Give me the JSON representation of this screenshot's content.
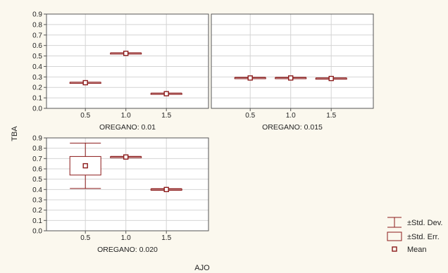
{
  "chart_data": {
    "type": "box",
    "ylabel": "TBA",
    "xlabel": "AJO",
    "categories": [
      "0.5",
      "1.0",
      "1.5"
    ],
    "y_ticks": [
      "0.0",
      "0.1",
      "0.2",
      "0.3",
      "0.4",
      "0.5",
      "0.6",
      "0.7",
      "0.8",
      "0.9"
    ],
    "ylim": [
      0,
      0.9
    ],
    "grid": true,
    "color": "#8b1a1a",
    "panels": [
      {
        "label": "OREGANO: 0.01",
        "groups": [
          {
            "x": "0.5",
            "mean": 0.245,
            "se_low": 0.242,
            "se_high": 0.248,
            "sd_low": 0.24,
            "sd_high": 0.25
          },
          {
            "x": "1.0",
            "mean": 0.525,
            "se_low": 0.522,
            "se_high": 0.528,
            "sd_low": 0.519,
            "sd_high": 0.531
          },
          {
            "x": "1.5",
            "mean": 0.14,
            "se_low": 0.137,
            "se_high": 0.143,
            "sd_low": 0.134,
            "sd_high": 0.146
          }
        ]
      },
      {
        "label": "OREGANO: 0.015",
        "groups": [
          {
            "x": "0.5",
            "mean": 0.29,
            "se_low": 0.287,
            "se_high": 0.293,
            "sd_low": 0.284,
            "sd_high": 0.296
          },
          {
            "x": "1.0",
            "mean": 0.29,
            "se_low": 0.287,
            "se_high": 0.293,
            "sd_low": 0.284,
            "sd_high": 0.296
          },
          {
            "x": "1.5",
            "mean": 0.285,
            "se_low": 0.282,
            "se_high": 0.288,
            "sd_low": 0.279,
            "sd_high": 0.291
          }
        ]
      },
      {
        "label": "OREGANO: 0.020",
        "groups": [
          {
            "x": "0.5",
            "mean": 0.63,
            "se_low": 0.54,
            "se_high": 0.72,
            "sd_low": 0.41,
            "sd_high": 0.85
          },
          {
            "x": "1.0",
            "mean": 0.715,
            "se_low": 0.712,
            "se_high": 0.718,
            "sd_low": 0.709,
            "sd_high": 0.721
          },
          {
            "x": "1.5",
            "mean": 0.4,
            "se_low": 0.396,
            "se_high": 0.404,
            "sd_low": 0.392,
            "sd_high": 0.408
          }
        ]
      }
    ],
    "legend": {
      "position": "bottom-right",
      "items": [
        "±Std. Dev.",
        "±Std. Err.",
        "Mean"
      ]
    }
  }
}
